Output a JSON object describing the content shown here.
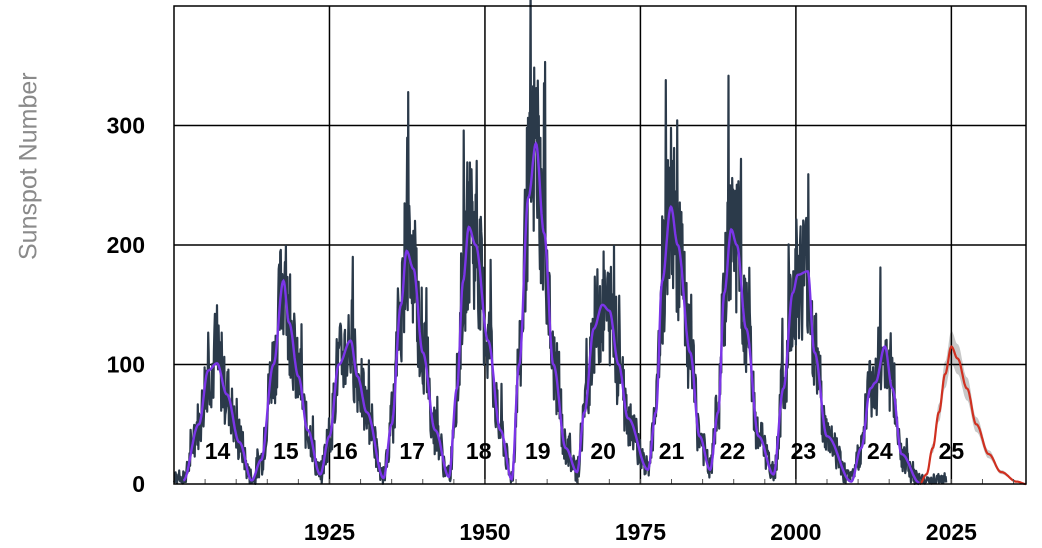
{
  "chart_data": {
    "type": "line",
    "title": "",
    "ylabel": "Sunspot Number",
    "xlabel": "",
    "xlim": [
      1900,
      2037
    ],
    "ylim": [
      0,
      400
    ],
    "grid": true,
    "y_ticks": [
      {
        "value": 0,
        "label": "0"
      },
      {
        "value": 100,
        "label": "100"
      },
      {
        "value": 200,
        "label": "200"
      },
      {
        "value": 300,
        "label": "300"
      }
    ],
    "x_ticks": [
      {
        "value": 1925,
        "label": "1925"
      },
      {
        "value": 1950,
        "label": "1950"
      },
      {
        "value": 1975,
        "label": "1975"
      },
      {
        "value": 2000,
        "label": "2000"
      },
      {
        "value": 2025,
        "label": "2025"
      }
    ],
    "colors": {
      "monthly": "#2b3a4a",
      "smoothed": "#7b35e8",
      "prediction": "#d03020",
      "prediction_band": "#c8c8c8",
      "grid": "#000000"
    },
    "cycles": [
      {
        "label": "14",
        "year": 1906.9,
        "label_year": 1907.0
      },
      {
        "label": "15",
        "year": 1917.6,
        "label_year": 1918.0
      },
      {
        "label": "16",
        "year": 1928.4,
        "label_year": 1927.5
      },
      {
        "label": "17",
        "year": 1937.4,
        "label_year": 1938.3
      },
      {
        "label": "18",
        "year": 1947.4,
        "label_year": 1949.0
      },
      {
        "label": "19",
        "year": 1958.2,
        "label_year": 1958.5
      },
      {
        "label": "20",
        "year": 1968.9,
        "label_year": 1969.0
      },
      {
        "label": "21",
        "year": 1979.9,
        "label_year": 1980.0
      },
      {
        "label": "22",
        "year": 1989.6,
        "label_year": 1989.8
      },
      {
        "label": "23",
        "year": 2001.9,
        "label_year": 2001.2
      },
      {
        "label": "24",
        "year": 2014.3,
        "label_year": 2013.5
      },
      {
        "label": "25",
        "year": 2025.0,
        "label_year": 2025.0
      }
    ],
    "series": [
      {
        "key": "smoothed",
        "points": [
          [
            1901.5,
            3
          ],
          [
            1904.0,
            50
          ],
          [
            1905.5,
            95
          ],
          [
            1906.9,
            101
          ],
          [
            1908.5,
            75
          ],
          [
            1910.5,
            35
          ],
          [
            1912.5,
            3
          ],
          [
            1914.0,
            20
          ],
          [
            1916.0,
            100
          ],
          [
            1917.6,
            170
          ],
          [
            1918.5,
            135
          ],
          [
            1920.0,
            90
          ],
          [
            1921.5,
            45
          ],
          [
            1923.5,
            8
          ],
          [
            1925.0,
            40
          ],
          [
            1926.5,
            100
          ],
          [
            1928.4,
            120
          ],
          [
            1929.5,
            90
          ],
          [
            1931.0,
            60
          ],
          [
            1933.7,
            5
          ],
          [
            1935.0,
            50
          ],
          [
            1936.5,
            150
          ],
          [
            1937.4,
            195
          ],
          [
            1938.5,
            180
          ],
          [
            1940.0,
            110
          ],
          [
            1942.0,
            45
          ],
          [
            1944.2,
            6
          ],
          [
            1945.5,
            80
          ],
          [
            1946.5,
            170
          ],
          [
            1947.4,
            215
          ],
          [
            1948.5,
            200
          ],
          [
            1950.5,
            120
          ],
          [
            1952.5,
            45
          ],
          [
            1954.3,
            4
          ],
          [
            1955.5,
            100
          ],
          [
            1957.0,
            240
          ],
          [
            1958.2,
            285
          ],
          [
            1959.5,
            210
          ],
          [
            1961.0,
            100
          ],
          [
            1963.0,
            30
          ],
          [
            1964.8,
            10
          ],
          [
            1966.0,
            60
          ],
          [
            1967.5,
            130
          ],
          [
            1968.9,
            150
          ],
          [
            1970.0,
            145
          ],
          [
            1971.5,
            100
          ],
          [
            1973.0,
            55
          ],
          [
            1976.2,
            12
          ],
          [
            1977.5,
            60
          ],
          [
            1978.5,
            170
          ],
          [
            1979.9,
            232
          ],
          [
            1981.0,
            200
          ],
          [
            1983.0,
            110
          ],
          [
            1984.5,
            40
          ],
          [
            1986.2,
            12
          ],
          [
            1987.5,
            60
          ],
          [
            1988.5,
            160
          ],
          [
            1989.6,
            213
          ],
          [
            1990.5,
            200
          ],
          [
            1992.0,
            130
          ],
          [
            1994.0,
            40
          ],
          [
            1996.4,
            8
          ],
          [
            1998.0,
            80
          ],
          [
            1999.5,
            160
          ],
          [
            2000.3,
            175
          ],
          [
            2001.9,
            178
          ],
          [
            2003.0,
            110
          ],
          [
            2005.0,
            40
          ],
          [
            2008.9,
            2
          ],
          [
            2010.5,
            30
          ],
          [
            2012.0,
            80
          ],
          [
            2012.8,
            85
          ],
          [
            2014.3,
            115
          ],
          [
            2015.5,
            80
          ],
          [
            2017.0,
            25
          ],
          [
            2019.9,
            1
          ]
        ]
      },
      {
        "key": "prediction",
        "points": [
          [
            2019.9,
            0
          ],
          [
            2021.0,
            8
          ],
          [
            2022.0,
            30
          ],
          [
            2023.0,
            60
          ],
          [
            2024.0,
            92
          ],
          [
            2025.0,
            115
          ],
          [
            2026.0,
            105
          ],
          [
            2027.5,
            80
          ],
          [
            2029.0,
            50
          ],
          [
            2031.0,
            25
          ],
          [
            2033.0,
            10
          ],
          [
            2035.5,
            2
          ],
          [
            2037.0,
            0
          ]
        ]
      }
    ]
  }
}
